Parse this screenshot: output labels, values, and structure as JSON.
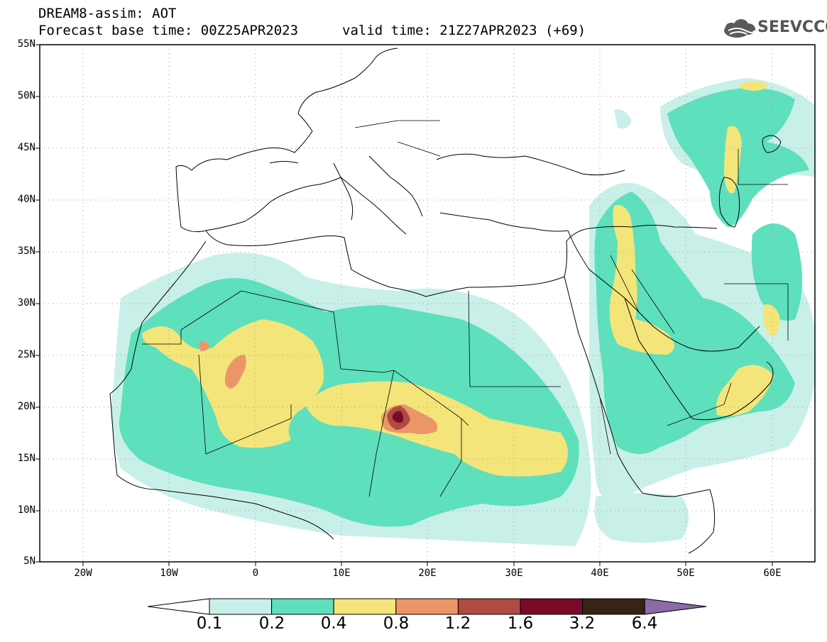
{
  "header": {
    "title": "DREAM8-assim: AOT",
    "base_time": "Forecast base time: 00Z25APR2023",
    "valid_time": "valid time: 21Z27APR2023 (+69)"
  },
  "logo": {
    "text": "SEEVCCC",
    "icon": "cloud-logo-icon"
  },
  "map": {
    "lat_labels": [
      "55N",
      "50N",
      "45N",
      "40N",
      "35N",
      "30N",
      "25N",
      "20N",
      "15N",
      "10N",
      "5N"
    ],
    "lon_labels": [
      "20W",
      "10W",
      "0",
      "10E",
      "20E",
      "30E",
      "40E",
      "50E",
      "60E"
    ],
    "lon_range": [
      -25,
      65
    ],
    "lat_range": [
      5,
      55
    ],
    "grid": "dotted"
  },
  "colorbar": {
    "labels": [
      "0.1",
      "0.2",
      "0.4",
      "0.8",
      "1.2",
      "1.6",
      "3.2",
      "6.4"
    ],
    "colors": [
      "#c8f0e8",
      "#5ee0bc",
      "#f4e57a",
      "#ec9668",
      "#b04a42",
      "#7a0a2a",
      "#3a2214",
      "#8a6aa8"
    ],
    "under_color": "#ffffff",
    "over_color": "#8a6aa8"
  }
}
